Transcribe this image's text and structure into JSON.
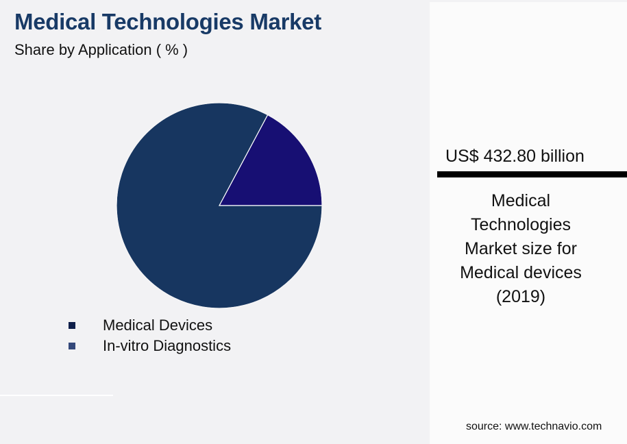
{
  "header": {
    "title": "Medical Technologies Market",
    "subtitle": "Share by Application ( % )"
  },
  "legend": {
    "items": [
      {
        "label": "Medical Devices",
        "color": "#0f1f4a"
      },
      {
        "label": "In-vitro Diagnostics",
        "color": "#34487a"
      }
    ]
  },
  "kpi": {
    "value": "US$ 432.80 billion",
    "caption_lines": [
      "Medical",
      "Technologies",
      "Market size for",
      "Medical devices",
      "(2019)"
    ]
  },
  "footer": {
    "source": "source: www.technavio.com"
  },
  "colors": {
    "title": "#183a66",
    "slice_medical_devices": "#173660",
    "slice_in_vitro": "#170f73",
    "background": "#f2f2f4",
    "panel": "#fbfbfb"
  },
  "chart_data": {
    "type": "pie",
    "title": "Medical Technologies Market",
    "subtitle": "Share by Application ( % )",
    "categories": [
      "Medical Devices",
      "In-vitro Diagnostics"
    ],
    "values": [
      82.8,
      17.2
    ],
    "colors": [
      "#173660",
      "#170f73"
    ],
    "start_angle_deg": 0,
    "direction": "counterclockwise",
    "legend_position": "bottom-left",
    "data_labels": false
  }
}
